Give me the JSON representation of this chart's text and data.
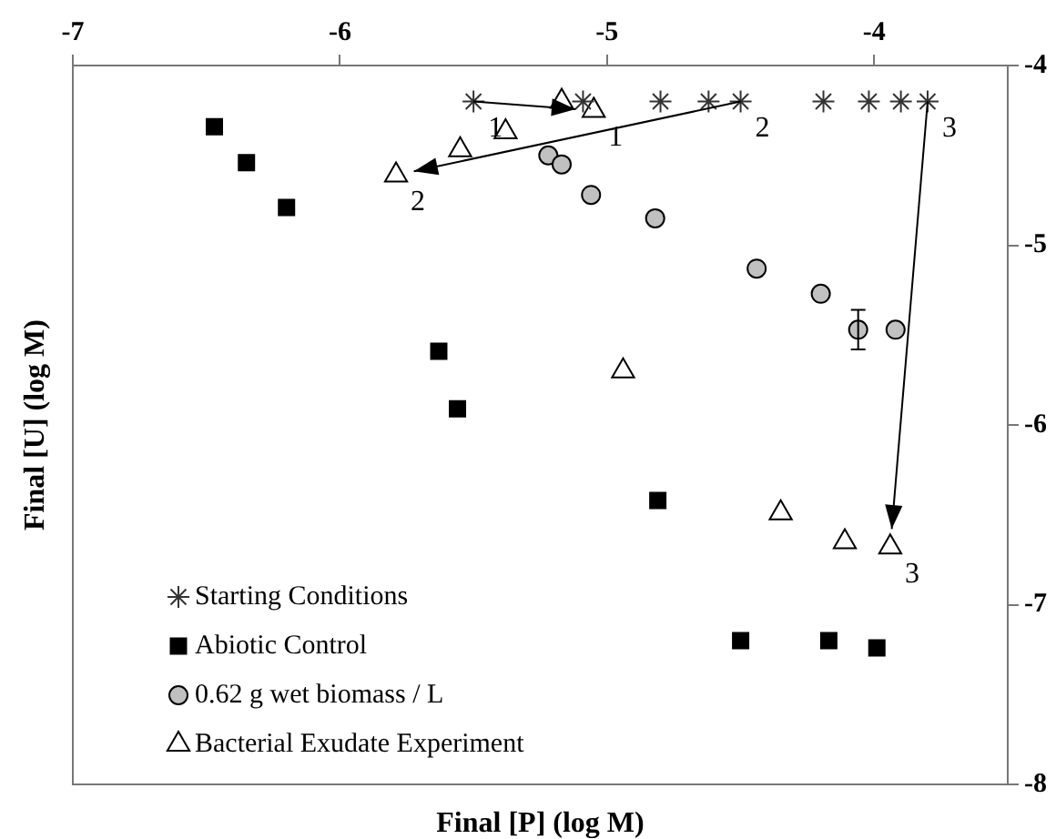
{
  "chart_data": {
    "type": "scatter",
    "xlabel": "Final [P] (log M)",
    "ylabel": "Final [U] (log M)",
    "xlim": [
      -7,
      -3.5
    ],
    "xticks": [
      -7,
      -6,
      -5,
      -4
    ],
    "ylim": [
      -8,
      -4
    ],
    "yticks": [
      -4,
      -5,
      -6,
      -7,
      -8
    ],
    "grid": false,
    "legend": "bottom left",
    "series": [
      {
        "name": "Starting Conditions",
        "color": "#333333",
        "marker": "cross",
        "x": [
          -5.5,
          -5.09,
          -4.8,
          -4.62,
          -4.5,
          -4.19,
          -4.02,
          -3.9,
          -3.8
        ],
        "values": [
          -4.2,
          -4.2,
          -4.2,
          -4.2,
          -4.2,
          -4.2,
          -4.2,
          -4.2,
          -4.2
        ]
      },
      {
        "name": "Abiotic Control",
        "color": "#000000",
        "marker": "square",
        "x": [
          -6.47,
          -6.35,
          -6.2,
          -5.63,
          -5.56,
          -4.81,
          -4.5,
          -4.17,
          -3.99
        ],
        "values": [
          -4.34,
          -4.54,
          -4.79,
          -5.59,
          -5.91,
          -6.42,
          -7.2,
          -7.2,
          -7.24
        ]
      },
      {
        "name": "0.62 g wet biomass / L",
        "color": "#c0c0c0",
        "marker": "circle",
        "x": [
          -5.22,
          -5.17,
          -5.06,
          -4.82,
          -4.44,
          -4.2,
          -4.06,
          -3.92
        ],
        "values": [
          -4.5,
          -4.55,
          -4.72,
          -4.85,
          -5.13,
          -5.27,
          -5.47,
          -5.47
        ],
        "errors": [
          null,
          null,
          null,
          null,
          null,
          null,
          0.11,
          null
        ]
      },
      {
        "name": "Bacterial Exudate Experiment",
        "color": "#ffffff",
        "marker": "triangle",
        "x": [
          -5.17,
          -5.05,
          -5.38,
          -5.55,
          -5.79,
          -4.94,
          -4.35,
          -4.11,
          -3.94
        ],
        "values": [
          -4.2,
          -4.25,
          -4.37,
          -4.47,
          -4.61,
          -5.7,
          -6.49,
          -6.65,
          -6.68
        ]
      }
    ],
    "annotations": [
      {
        "text": "1",
        "x": -5.5,
        "y": -4.2
      },
      {
        "text": "1",
        "x": -5.05,
        "y": -4.25
      },
      {
        "text": "2",
        "x": -4.5,
        "y": -4.2
      },
      {
        "text": "2",
        "x": -5.79,
        "y": -4.61
      },
      {
        "text": "3",
        "x": -3.8,
        "y": -4.2
      },
      {
        "text": "3",
        "x": -3.94,
        "y": -6.68
      }
    ]
  }
}
